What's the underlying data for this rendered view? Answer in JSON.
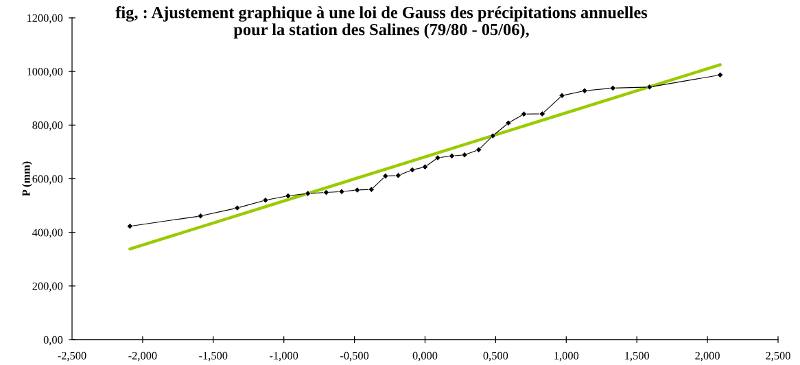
{
  "chart_data": {
    "type": "line",
    "title": "fig, : Ajustement graphique à une loi de Gauss des précipitations annuelles\npour la station des Salines (79/80 - 05/06),",
    "ylabel": "P (mm)",
    "xlim": [
      -2.5,
      2.5
    ],
    "xticks": [
      {
        "value": -2.5,
        "label": "-2,500"
      },
      {
        "value": -2.0,
        "label": "-2,000"
      },
      {
        "value": -1.5,
        "label": "-1,500"
      },
      {
        "value": -1.0,
        "label": "-1,000"
      },
      {
        "value": -0.5,
        "label": "-0,500"
      },
      {
        "value": 0,
        "label": "0,000"
      },
      {
        "value": 0.5,
        "label": "0,500"
      },
      {
        "value": 1.0,
        "label": "1,000"
      },
      {
        "value": 1.5,
        "label": "1,500"
      },
      {
        "value": 2.0,
        "label": "2,000"
      },
      {
        "value": 2.5,
        "label": "2,500"
      }
    ],
    "ylim": [
      0,
      1200
    ],
    "yticks": [
      {
        "value": 0,
        "label": "0,00"
      },
      {
        "value": 200,
        "label": "200,00"
      },
      {
        "value": 400,
        "label": "400,00"
      },
      {
        "value": 600,
        "label": "600,00"
      },
      {
        "value": 800,
        "label": "800,00"
      },
      {
        "value": 1000,
        "label": "1000,00"
      },
      {
        "value": 1200,
        "label": "1200,00"
      }
    ],
    "grid": false,
    "series": [
      {
        "color": "#99cc00",
        "marker": "none",
        "line_style": "solid",
        "x": [
          -2.09,
          2.09
        ],
        "values": [
          338,
          1025
        ]
      },
      {
        "color": "#000000",
        "marker": "diamond",
        "line_style": "solid",
        "x": [
          -2.09,
          -1.59,
          -1.33,
          -1.13,
          -0.97,
          -0.83,
          -0.7,
          -0.59,
          -0.48,
          -0.38,
          -0.28,
          -0.19,
          -0.09,
          0.0,
          0.09,
          0.19,
          0.28,
          0.38,
          0.48,
          0.59,
          0.7,
          0.83,
          0.97,
          1.13,
          1.33,
          1.59,
          2.09
        ],
        "values": [
          423,
          461,
          491,
          520,
          536,
          545,
          549,
          552,
          558,
          560,
          610,
          612,
          633,
          644,
          678,
          685,
          689,
          708,
          760,
          808,
          841,
          842,
          910,
          928,
          938,
          942,
          987
        ]
      }
    ]
  }
}
